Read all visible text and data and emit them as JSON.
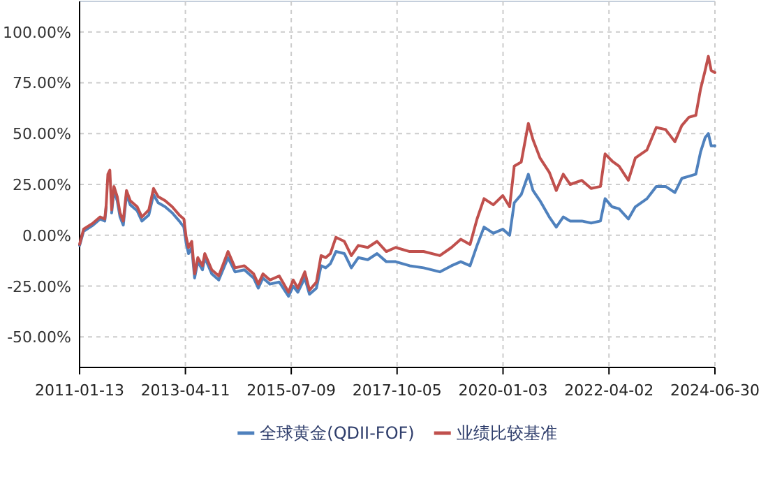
{
  "chart_data": {
    "type": "line",
    "legend": "bottom",
    "grid": true,
    "marker": "none",
    "line_style": "solid",
    "x": [
      "2011-01-13",
      "2011-02-13",
      "2011-04-27",
      "2011-06-21",
      "2011-07-27",
      "2011-08-07",
      "2011-08-20",
      "2011-09-04",
      "2011-09-18",
      "2011-10-06",
      "2011-10-31",
      "2011-11-22",
      "2011-12-17",
      "2012-01-11",
      "2012-02-09",
      "2012-04-03",
      "2012-05-09",
      "2012-07-02",
      "2012-08-07",
      "2012-09-12",
      "2012-11-05",
      "2012-12-30",
      "2013-02-22",
      "2013-03-30",
      "2013-04-17",
      "2013-05-05",
      "2013-05-30",
      "2013-06-21",
      "2013-07-16",
      "2013-08-21",
      "2013-09-08",
      "2013-11-01",
      "2013-12-25",
      "2014-03-07",
      "2014-04-30",
      "2014-07-11",
      "2014-09-21",
      "2014-10-27",
      "2014-12-02",
      "2015-01-25",
      "2015-04-07",
      "2015-06-18",
      "2015-07-24",
      "2015-08-29",
      "2015-10-22",
      "2015-11-27",
      "2016-01-20",
      "2016-02-25",
      "2016-04-01",
      "2016-05-07",
      "2016-06-19",
      "2016-08-23",
      "2016-10-16",
      "2016-12-09",
      "2017-02-20",
      "2017-05-03",
      "2017-07-14",
      "2017-09-24",
      "2018-01-10",
      "2018-04-28",
      "2018-09-01",
      "2018-11-30",
      "2019-02-10",
      "2019-04-23",
      "2019-06-16",
      "2019-08-09",
      "2019-10-20",
      "2020-01-01",
      "2020-02-23",
      "2020-03-30",
      "2020-05-23",
      "2020-07-17",
      "2020-08-22",
      "2020-10-15",
      "2020-12-26",
      "2021-02-18",
      "2021-04-13",
      "2021-06-06",
      "2021-09-04",
      "2021-11-15",
      "2022-01-26",
      "2022-03-03",
      "2022-04-26",
      "2022-06-19",
      "2022-08-30",
      "2022-10-23",
      "2023-01-21",
      "2023-04-03",
      "2023-06-14",
      "2023-08-25",
      "2023-10-18",
      "2023-12-11",
      "2024-02-03",
      "2024-03-11",
      "2024-04-15",
      "2024-05-10",
      "2024-06-01",
      "2024-06-30"
    ],
    "xlim": [
      "2011-01-13",
      "2024-06-30"
    ],
    "xticks": [
      "2011-01-13",
      "2013-04-11",
      "2015-07-09",
      "2017-10-05",
      "2020-01-03",
      "2022-04-02",
      "2024-06-30"
    ],
    "ylim": [
      -65,
      115
    ],
    "yticks": [
      {
        "value": -50,
        "label": "-50.00%"
      },
      {
        "value": -25,
        "label": "-25.00%"
      },
      {
        "value": 0,
        "label": "0.00%"
      },
      {
        "value": 25,
        "label": "25.00%"
      },
      {
        "value": 50,
        "label": "50.00%"
      },
      {
        "value": 75,
        "label": "75.00%"
      },
      {
        "value": 100,
        "label": "100.00%"
      }
    ],
    "series": [
      {
        "name": "全球黄金(QDII-FOF)",
        "color": "#4f81bd",
        "values": [
          -5,
          2,
          5,
          8,
          7,
          14,
          null,
          null,
          11,
          22,
          17,
          9,
          5,
          20,
          15,
          12,
          7,
          10,
          20,
          16,
          14,
          11,
          7,
          4,
          -4,
          -9,
          -6,
          -21,
          -13,
          -17,
          -11,
          -19,
          -22,
          -11,
          -18,
          -17,
          -21,
          -26,
          -21,
          -24,
          -23,
          -30,
          -25,
          -28,
          -21,
          -29,
          -26,
          -15,
          -16,
          -14,
          -8,
          -9,
          -16,
          -11,
          -12,
          -9,
          -13,
          -13,
          -15,
          -16,
          -18,
          -15,
          -13,
          -15,
          -5,
          4,
          1,
          3,
          0,
          16,
          20,
          30,
          22,
          17,
          9,
          4,
          9,
          7,
          7,
          6,
          7,
          18,
          14,
          13,
          8,
          14,
          18,
          24,
          24,
          21,
          28,
          29,
          30,
          41,
          48,
          50,
          44,
          44
        ]
      },
      {
        "name": "业绩比较基准",
        "color": "#c0504d",
        "values": [
          -4.5,
          3,
          6,
          9,
          8,
          15,
          30,
          32,
          12.5,
          24,
          19,
          11,
          7,
          22,
          17,
          14,
          9,
          12.5,
          23,
          19,
          17,
          14,
          10,
          8,
          -1,
          -6,
          -3,
          -19,
          -11,
          -15,
          -9,
          -17,
          -20,
          -8,
          -16,
          -15,
          -19,
          -24,
          -19,
          -22,
          -20,
          -28,
          -22,
          -26,
          -18,
          -27,
          -23,
          -10,
          -11,
          -9,
          -1,
          -3,
          -10,
          -5,
          -6,
          -3,
          -8,
          -6,
          -8,
          -8,
          -10,
          -6,
          -2,
          -4.5,
          8,
          18,
          15,
          19.5,
          14,
          34,
          36,
          55,
          47,
          38,
          31,
          22,
          30,
          25,
          27,
          23,
          24,
          40,
          36.5,
          34,
          27,
          38,
          42,
          53,
          52,
          46,
          54,
          58,
          59,
          72,
          81,
          88,
          81,
          80
        ]
      }
    ]
  }
}
